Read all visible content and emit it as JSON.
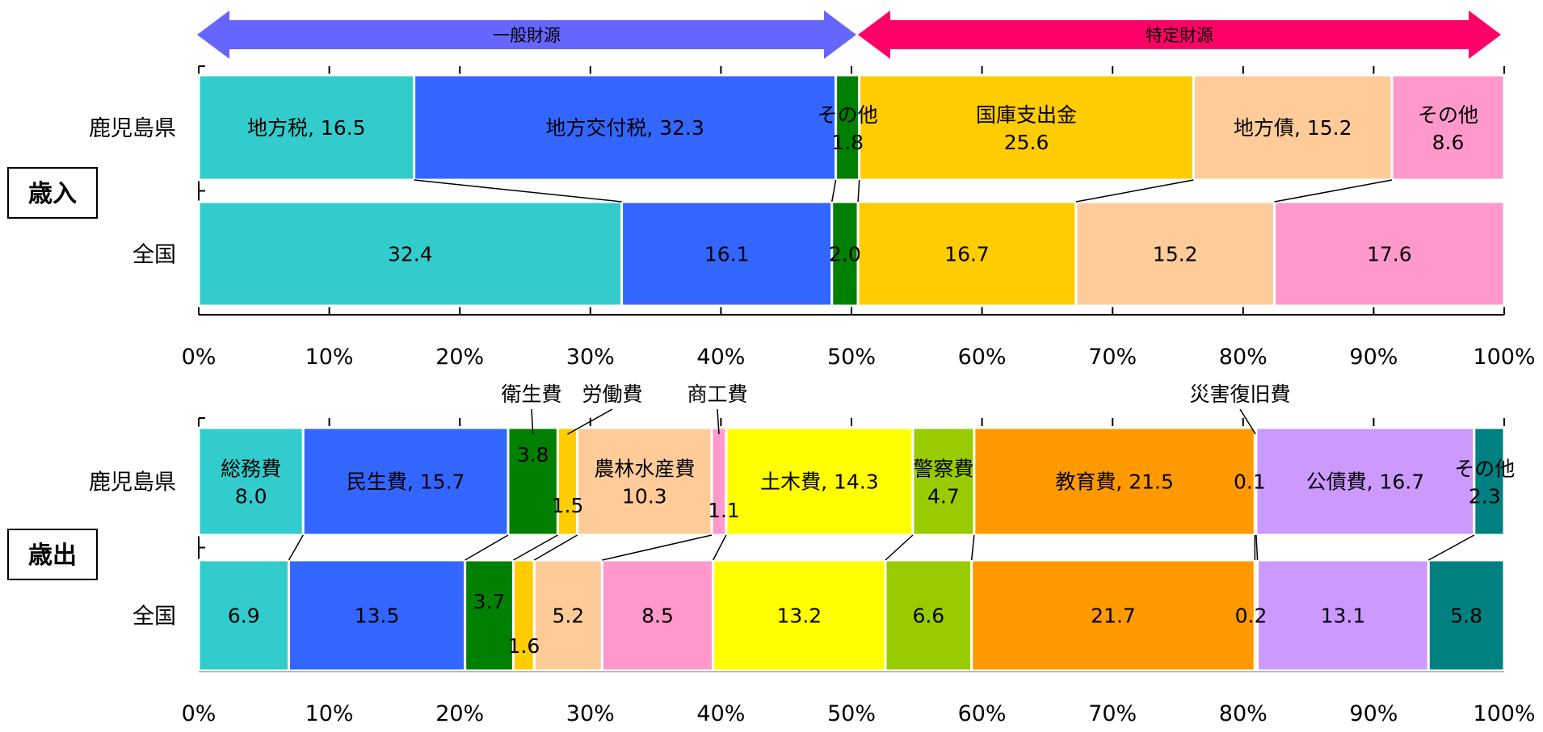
{
  "colors": {
    "general_arrow": "#6666ff",
    "specific_arrow": "#ff0066",
    "axis": "#000000"
  },
  "arrows": {
    "general": "一般財源",
    "specific": "特定財源"
  },
  "chart_data": [
    {
      "type": "bar",
      "orientation": "horizontal",
      "stacked": true,
      "section_label": "歳入",
      "categories": [
        "鹿児島県",
        "全国"
      ],
      "xlim": [
        0,
        100
      ],
      "x_ticks": [
        "0%",
        "10%",
        "20%",
        "30%",
        "40%",
        "50%",
        "60%",
        "70%",
        "80%",
        "90%",
        "100%"
      ],
      "grid": false,
      "series": [
        {
          "name": "地方税",
          "color": "#33cccc",
          "values": [
            16.5,
            32.4
          ]
        },
        {
          "name": "地方交付税",
          "color": "#3366ff",
          "values": [
            32.3,
            16.1
          ]
        },
        {
          "name": "その他",
          "color": "#008000",
          "values": [
            1.8,
            2.0
          ]
        },
        {
          "name": "国庫支出金",
          "color": "#ffcc00",
          "values": [
            25.6,
            16.7
          ]
        },
        {
          "name": "地方債",
          "color": "#ffcc99",
          "values": [
            15.2,
            15.2
          ]
        },
        {
          "name": "その他",
          "color": "#ff99cc",
          "values": [
            8.6,
            17.6
          ]
        }
      ],
      "labels": [
        [
          {
            "lines": [
              "地方税, 16.5"
            ]
          },
          {
            "lines": [
              "地方交付税, 32.3"
            ]
          },
          {
            "lines": [
              "その他",
              "1.8"
            ]
          },
          {
            "lines": [
              "国庫支出金",
              "25.6"
            ]
          },
          {
            "lines": [
              "地方債, 15.2"
            ]
          },
          {
            "lines": [
              "その他",
              "8.6"
            ]
          }
        ],
        [
          {
            "lines": [
              "32.4"
            ]
          },
          {
            "lines": [
              "16.1"
            ]
          },
          {
            "lines": [
              "2.0"
            ]
          },
          {
            "lines": [
              "16.7"
            ]
          },
          {
            "lines": [
              "15.2"
            ]
          },
          {
            "lines": [
              "17.6"
            ]
          }
        ]
      ]
    },
    {
      "type": "bar",
      "orientation": "horizontal",
      "stacked": true,
      "section_label": "歳出",
      "categories": [
        "鹿児島県",
        "全国"
      ],
      "xlim": [
        0,
        100
      ],
      "x_ticks": [
        "0%",
        "10%",
        "20%",
        "30%",
        "40%",
        "50%",
        "60%",
        "70%",
        "80%",
        "90%",
        "100%"
      ],
      "grid": false,
      "series": [
        {
          "name": "総務費",
          "color": "#33cccc",
          "values": [
            8.0,
            6.9
          ]
        },
        {
          "name": "民生費",
          "color": "#3366ff",
          "values": [
            15.7,
            13.5
          ]
        },
        {
          "name": "衛生費",
          "color": "#008000",
          "values": [
            3.8,
            3.7
          ]
        },
        {
          "name": "労働費",
          "color": "#ffcc00",
          "values": [
            1.5,
            1.6
          ]
        },
        {
          "name": "農林水産費",
          "color": "#ffcc99",
          "values": [
            10.3,
            5.2
          ]
        },
        {
          "name": "商工費",
          "color": "#ff99cc",
          "values": [
            1.1,
            8.5
          ]
        },
        {
          "name": "土木費",
          "color": "#ffff00",
          "values": [
            14.3,
            13.2
          ]
        },
        {
          "name": "警察費",
          "color": "#99cc00",
          "values": [
            4.7,
            6.6
          ]
        },
        {
          "name": "教育費",
          "color": "#ff9900",
          "values": [
            21.5,
            21.7
          ]
        },
        {
          "name": "災害復旧費",
          "color": "#00ff00",
          "values": [
            0.1,
            0.2
          ]
        },
        {
          "name": "公債費",
          "color": "#cc99ff",
          "values": [
            16.7,
            13.1
          ]
        },
        {
          "name": "その他",
          "color": "#008080",
          "values": [
            2.3,
            5.8
          ]
        }
      ],
      "labels": [
        [
          {
            "lines": [
              "総務費",
              "8.0"
            ]
          },
          {
            "lines": [
              "民生費, 15.7"
            ]
          },
          {
            "lines": [
              "3.8"
            ]
          },
          {
            "lines": [
              "1.5"
            ]
          },
          {
            "lines": [
              "農林水産費",
              "10.3"
            ]
          },
          {
            "lines": [
              "1.1"
            ]
          },
          {
            "lines": [
              "土木費, 14.3"
            ]
          },
          {
            "lines": [
              "警察費",
              "4.7"
            ]
          },
          {
            "lines": [
              "教育費, 21.5"
            ]
          },
          {
            "lines": [
              "0.1"
            ]
          },
          {
            "lines": [
              "公債費, 16.7"
            ]
          },
          {
            "lines": [
              "その他",
              "2.3"
            ]
          }
        ],
        [
          {
            "lines": [
              "6.9"
            ]
          },
          {
            "lines": [
              "13.5"
            ]
          },
          {
            "lines": [
              "3.7"
            ]
          },
          {
            "lines": [
              "1.6"
            ]
          },
          {
            "lines": [
              "5.2"
            ]
          },
          {
            "lines": [
              "8.5"
            ]
          },
          {
            "lines": [
              "13.2"
            ]
          },
          {
            "lines": [
              "6.6"
            ]
          },
          {
            "lines": [
              "21.7"
            ]
          },
          {
            "lines": [
              "0.2"
            ]
          },
          {
            "lines": [
              "13.1"
            ]
          },
          {
            "lines": [
              "5.8"
            ]
          }
        ]
      ],
      "callouts": [
        {
          "text": "衛生費",
          "series": 2
        },
        {
          "text": "労働費",
          "series": 3
        },
        {
          "text": "商工費",
          "series": 5
        },
        {
          "text": "災害復旧費",
          "series": 9
        }
      ]
    }
  ]
}
